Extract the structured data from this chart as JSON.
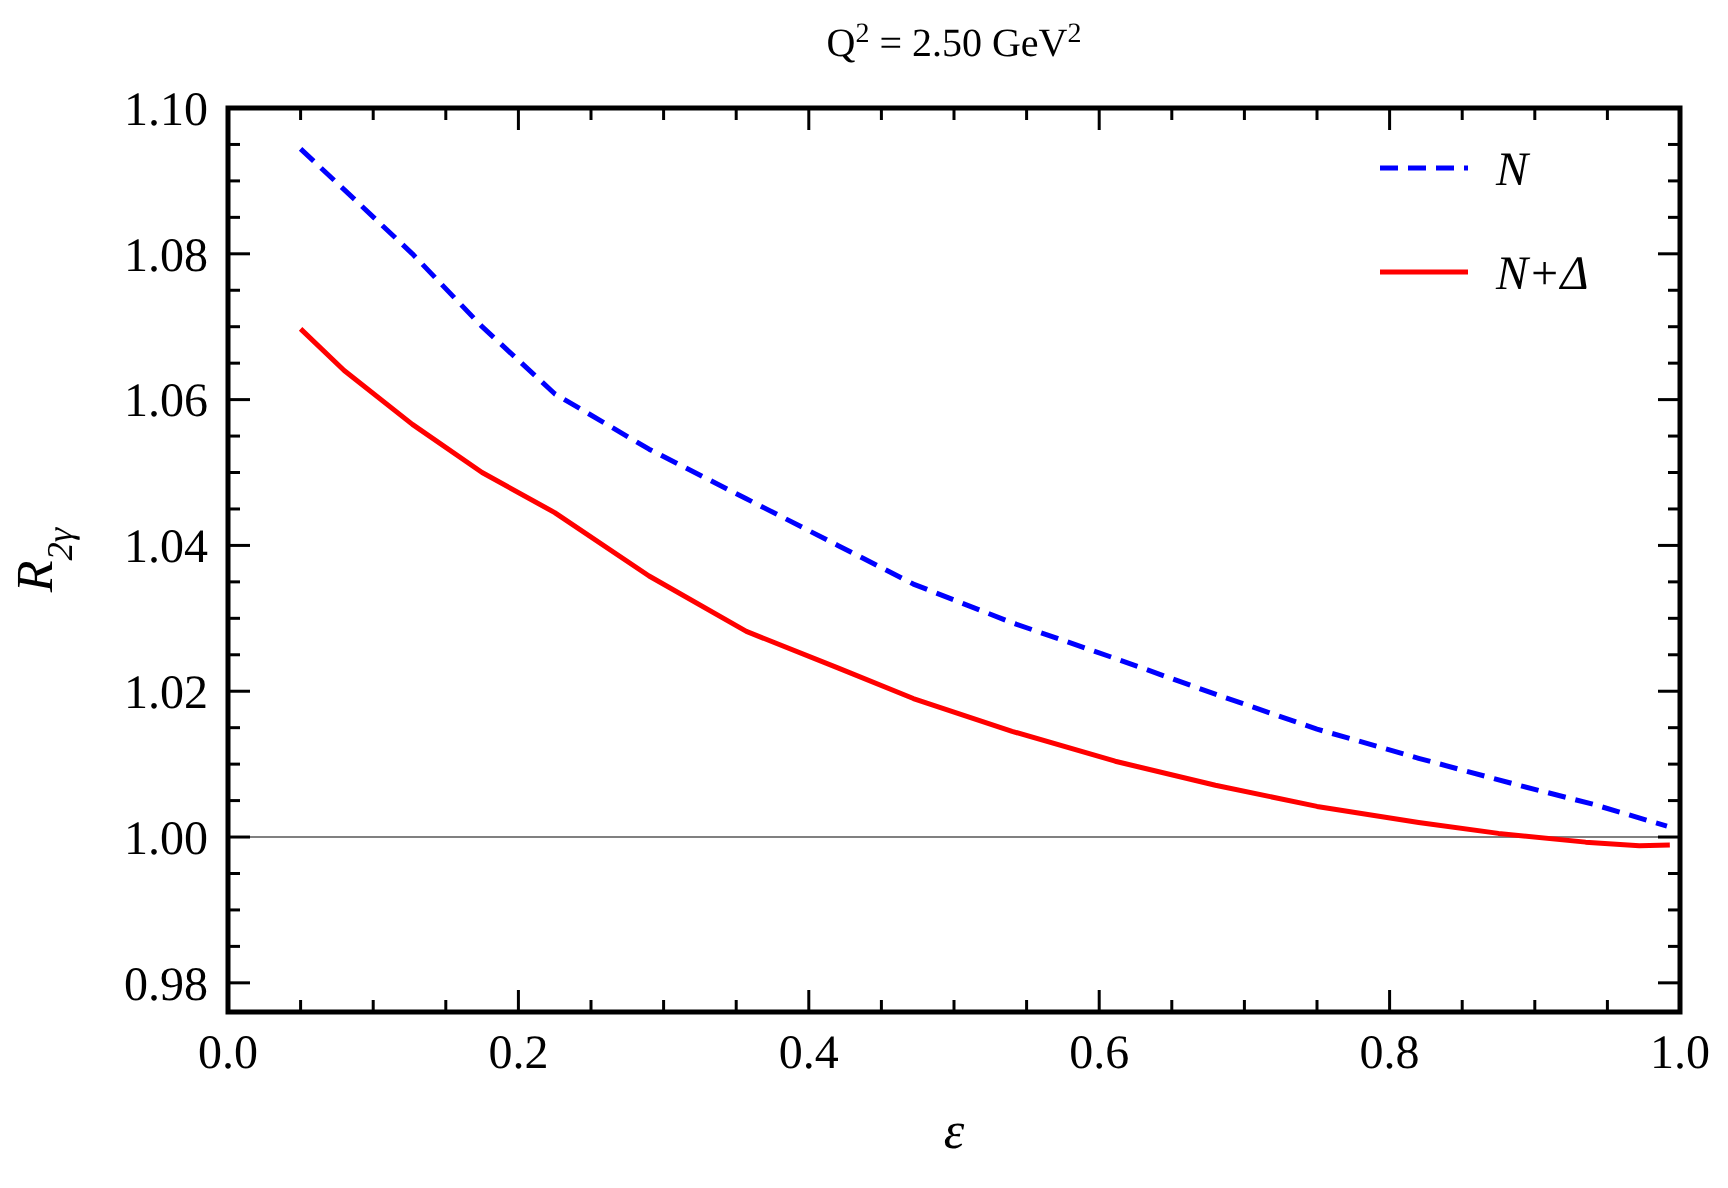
{
  "chart_data": {
    "type": "line",
    "title": "Q$^{2}$ = 2.50 GeV$^{2}$",
    "xlabel": "ε",
    "ylabel": "R$_{2γ}$",
    "xlim": [
      0,
      1
    ],
    "ylim": [
      0.976,
      1.1
    ],
    "xticks": [
      {
        "value": 0,
        "label": "0.0"
      },
      {
        "value": 0.05,
        "label": null
      },
      {
        "value": 0.1,
        "label": null
      },
      {
        "value": 0.15,
        "label": null
      },
      {
        "value": 0.2,
        "label": "0.2"
      },
      {
        "value": 0.25,
        "label": null
      },
      {
        "value": 0.3,
        "label": null
      },
      {
        "value": 0.35,
        "label": null
      },
      {
        "value": 0.4,
        "label": "0.4"
      },
      {
        "value": 0.45,
        "label": null
      },
      {
        "value": 0.5,
        "label": null
      },
      {
        "value": 0.55,
        "label": null
      },
      {
        "value": 0.6,
        "label": "0.6"
      },
      {
        "value": 0.65,
        "label": null
      },
      {
        "value": 0.7,
        "label": null
      },
      {
        "value": 0.75,
        "label": null
      },
      {
        "value": 0.8,
        "label": "0.8"
      },
      {
        "value": 0.85,
        "label": null
      },
      {
        "value": 0.9,
        "label": null
      },
      {
        "value": 0.95,
        "label": null
      },
      {
        "value": 1,
        "label": "1.0"
      }
    ],
    "yticks": [
      {
        "value": 0.98,
        "label": "0.98"
      },
      {
        "value": 0.985,
        "label": null
      },
      {
        "value": 0.99,
        "label": null
      },
      {
        "value": 0.995,
        "label": null
      },
      {
        "value": 1,
        "label": "1.00"
      },
      {
        "value": 1.005,
        "label": null
      },
      {
        "value": 1.01,
        "label": null
      },
      {
        "value": 1.015,
        "label": null
      },
      {
        "value": 1.02,
        "label": "1.02"
      },
      {
        "value": 1.025,
        "label": null
      },
      {
        "value": 1.03,
        "label": null
      },
      {
        "value": 1.035,
        "label": null
      },
      {
        "value": 1.04,
        "label": "1.04"
      },
      {
        "value": 1.045,
        "label": null
      },
      {
        "value": 1.05,
        "label": null
      },
      {
        "value": 1.055,
        "label": null
      },
      {
        "value": 1.06,
        "label": "1.06"
      },
      {
        "value": 1.065,
        "label": null
      },
      {
        "value": 1.07,
        "label": null
      },
      {
        "value": 1.075,
        "label": null
      },
      {
        "value": 1.08,
        "label": "1.08"
      },
      {
        "value": 1.085,
        "label": null
      },
      {
        "value": 1.09,
        "label": null
      },
      {
        "value": 1.095,
        "label": null
      },
      {
        "value": 1.1,
        "label": "1.10"
      }
    ],
    "grid": false,
    "legend": "top right",
    "ref_lines": [
      {
        "axis": "y",
        "value": 1.0,
        "color": "#808080"
      }
    ],
    "series": [
      {
        "name": "N",
        "color": "#0000ff",
        "line_style": "dashed",
        "x": [
          0.05,
          0.08,
          0.127,
          0.175,
          0.225,
          0.29,
          0.357,
          0.42,
          0.472,
          0.54,
          0.611,
          0.68,
          0.75,
          0.82,
          0.889,
          0.94,
          0.991
        ],
        "values": [
          1.0944,
          1.0888,
          1.08,
          1.07,
          1.0608,
          1.0532,
          1.0464,
          1.04,
          1.0347,
          1.0294,
          1.0245,
          1.0196,
          1.0148,
          1.0108,
          1.0071,
          1.0045,
          1.0015
        ]
      },
      {
        "name": "N+Δ",
        "color": "#ff0000",
        "line_style": "solid",
        "x": [
          0.05,
          0.08,
          0.127,
          0.175,
          0.225,
          0.29,
          0.357,
          0.42,
          0.472,
          0.54,
          0.611,
          0.68,
          0.75,
          0.82,
          0.875,
          0.935,
          0.972,
          0.993
        ],
        "values": [
          1.0697,
          1.064,
          1.0566,
          1.05,
          1.0445,
          1.0358,
          1.0282,
          1.0232,
          1.019,
          1.0145,
          1.0104,
          1.0071,
          1.0042,
          1.002,
          1.0005,
          0.9993,
          0.9988,
          0.9989
        ]
      }
    ]
  }
}
